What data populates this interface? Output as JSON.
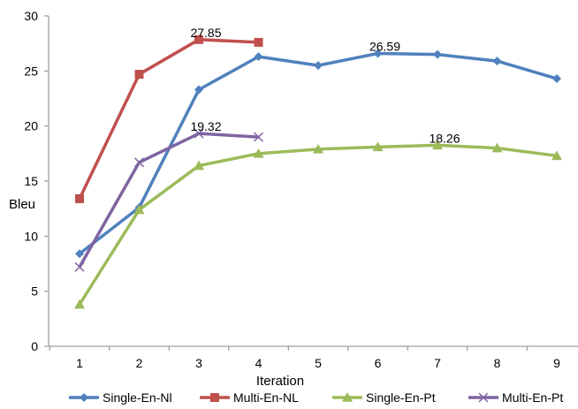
{
  "chart_data": {
    "type": "line",
    "title": "",
    "xlabel": "Iteration",
    "ylabel": "Bleu",
    "x": [
      1,
      2,
      3,
      4,
      5,
      6,
      7,
      8,
      9
    ],
    "xlim": [
      0.5,
      9.5
    ],
    "ylim": [
      0,
      30
    ],
    "yticks": [
      0,
      5,
      10,
      15,
      20,
      25,
      30
    ],
    "grid": false,
    "legend_position": "bottom",
    "series": [
      {
        "name": "Single-En-Nl",
        "color": "#4F81BD",
        "marker": "diamond",
        "x": [
          1,
          2,
          3,
          4,
          5,
          6,
          7,
          8,
          9
        ],
        "values": [
          8.4,
          12.6,
          23.3,
          26.3,
          25.5,
          26.59,
          26.5,
          25.9,
          24.3
        ]
      },
      {
        "name": "Multi-En-NL",
        "color": "#C0504D",
        "marker": "square",
        "x": [
          1,
          2,
          3,
          4
        ],
        "values": [
          13.4,
          24.7,
          27.85,
          27.6
        ]
      },
      {
        "name": "Single-En-Pt",
        "color": "#9BBB59",
        "marker": "triangle",
        "x": [
          1,
          2,
          3,
          4,
          5,
          6,
          7,
          8,
          9
        ],
        "values": [
          3.8,
          12.4,
          16.4,
          17.5,
          17.9,
          18.1,
          18.26,
          18.0,
          17.3
        ]
      },
      {
        "name": "Multi-En-Pt",
        "color": "#8064A2",
        "marker": "x",
        "x": [
          1,
          2,
          3,
          4
        ],
        "values": [
          7.2,
          16.7,
          19.32,
          19.0
        ]
      }
    ],
    "annotations": [
      {
        "text": "27.85",
        "x": 3,
        "y": 27.85
      },
      {
        "text": "19.32",
        "x": 3,
        "y": 19.32
      },
      {
        "text": "26.59",
        "x": 6,
        "y": 26.59
      },
      {
        "text": "18.26",
        "x": 7,
        "y": 18.26
      }
    ]
  }
}
